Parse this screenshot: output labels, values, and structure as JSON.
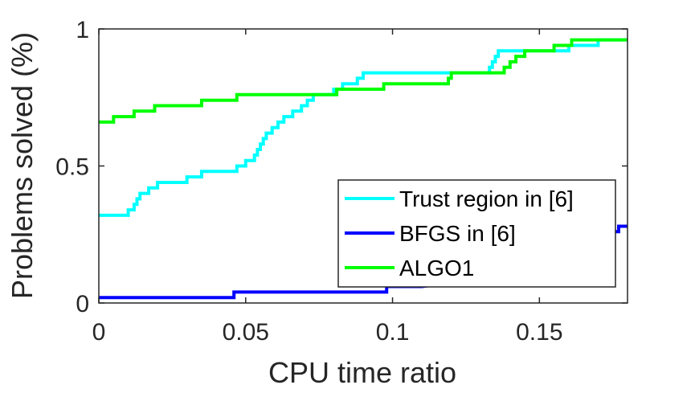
{
  "chart_data": {
    "type": "line",
    "title": "",
    "xlabel": "CPU time ratio",
    "ylabel": "Problems solved (%)",
    "xlim": [
      0,
      0.18
    ],
    "ylim": [
      0,
      1
    ],
    "x_ticks": [
      "0",
      "0.05",
      "0.1",
      "0.15"
    ],
    "x_tick_values": [
      0,
      0.05,
      0.1,
      0.15
    ],
    "y_ticks": [
      "0",
      "0.5",
      "1"
    ],
    "y_tick_values": [
      0,
      0.5,
      1
    ],
    "grid": false,
    "legend_position": "lower-right",
    "series": [
      {
        "name": "Trust region in [6]",
        "color": "#00ffff",
        "step": true,
        "points": [
          [
            0,
            0.32
          ],
          [
            0.01,
            0.32
          ],
          [
            0.01,
            0.34
          ],
          [
            0.012,
            0.34
          ],
          [
            0.012,
            0.36
          ],
          [
            0.013,
            0.36
          ],
          [
            0.013,
            0.38
          ],
          [
            0.014,
            0.38
          ],
          [
            0.014,
            0.4
          ],
          [
            0.017,
            0.4
          ],
          [
            0.017,
            0.42
          ],
          [
            0.02,
            0.42
          ],
          [
            0.02,
            0.44
          ],
          [
            0.03,
            0.44
          ],
          [
            0.03,
            0.46
          ],
          [
            0.035,
            0.46
          ],
          [
            0.035,
            0.48
          ],
          [
            0.047,
            0.48
          ],
          [
            0.047,
            0.5
          ],
          [
            0.05,
            0.5
          ],
          [
            0.05,
            0.52
          ],
          [
            0.053,
            0.52
          ],
          [
            0.053,
            0.54
          ],
          [
            0.054,
            0.54
          ],
          [
            0.054,
            0.56
          ],
          [
            0.055,
            0.56
          ],
          [
            0.055,
            0.58
          ],
          [
            0.056,
            0.58
          ],
          [
            0.056,
            0.6
          ],
          [
            0.057,
            0.6
          ],
          [
            0.057,
            0.62
          ],
          [
            0.059,
            0.62
          ],
          [
            0.059,
            0.64
          ],
          [
            0.061,
            0.64
          ],
          [
            0.061,
            0.66
          ],
          [
            0.063,
            0.66
          ],
          [
            0.063,
            0.68
          ],
          [
            0.066,
            0.68
          ],
          [
            0.066,
            0.7
          ],
          [
            0.069,
            0.7
          ],
          [
            0.069,
            0.72
          ],
          [
            0.071,
            0.72
          ],
          [
            0.071,
            0.74
          ],
          [
            0.073,
            0.74
          ],
          [
            0.073,
            0.76
          ],
          [
            0.08,
            0.76
          ],
          [
            0.08,
            0.78
          ],
          [
            0.083,
            0.78
          ],
          [
            0.083,
            0.8
          ],
          [
            0.088,
            0.8
          ],
          [
            0.088,
            0.82
          ],
          [
            0.09,
            0.82
          ],
          [
            0.09,
            0.84
          ],
          [
            0.133,
            0.84
          ],
          [
            0.133,
            0.86
          ],
          [
            0.134,
            0.86
          ],
          [
            0.134,
            0.88
          ],
          [
            0.135,
            0.88
          ],
          [
            0.135,
            0.9
          ],
          [
            0.136,
            0.9
          ],
          [
            0.136,
            0.92
          ],
          [
            0.16,
            0.92
          ],
          [
            0.16,
            0.94
          ],
          [
            0.17,
            0.94
          ],
          [
            0.17,
            0.96
          ],
          [
            0.18,
            0.96
          ]
        ]
      },
      {
        "name": "BFGS in [6]",
        "color": "#0000ff",
        "step": true,
        "points": [
          [
            0,
            0.02
          ],
          [
            0.046,
            0.02
          ],
          [
            0.046,
            0.04
          ],
          [
            0.098,
            0.04
          ],
          [
            0.098,
            0.06
          ],
          [
            0.11,
            0.06
          ],
          [
            0.125,
            0.08
          ],
          [
            0.14,
            0.12
          ],
          [
            0.155,
            0.16
          ],
          [
            0.165,
            0.24
          ],
          [
            0.168,
            0.24
          ],
          [
            0.168,
            0.26
          ],
          [
            0.177,
            0.26
          ],
          [
            0.177,
            0.28
          ],
          [
            0.18,
            0.28
          ]
        ]
      },
      {
        "name": "ALGO1",
        "color": "#00ff00",
        "step": true,
        "points": [
          [
            0,
            0.66
          ],
          [
            0.005,
            0.66
          ],
          [
            0.005,
            0.68
          ],
          [
            0.012,
            0.68
          ],
          [
            0.012,
            0.7
          ],
          [
            0.019,
            0.7
          ],
          [
            0.019,
            0.72
          ],
          [
            0.035,
            0.72
          ],
          [
            0.035,
            0.74
          ],
          [
            0.047,
            0.74
          ],
          [
            0.047,
            0.76
          ],
          [
            0.081,
            0.76
          ],
          [
            0.081,
            0.78
          ],
          [
            0.097,
            0.78
          ],
          [
            0.097,
            0.8
          ],
          [
            0.119,
            0.8
          ],
          [
            0.119,
            0.82
          ],
          [
            0.12,
            0.82
          ],
          [
            0.12,
            0.84
          ],
          [
            0.138,
            0.84
          ],
          [
            0.138,
            0.86
          ],
          [
            0.14,
            0.86
          ],
          [
            0.14,
            0.88
          ],
          [
            0.142,
            0.88
          ],
          [
            0.142,
            0.9
          ],
          [
            0.145,
            0.9
          ],
          [
            0.145,
            0.92
          ],
          [
            0.155,
            0.92
          ],
          [
            0.155,
            0.94
          ],
          [
            0.161,
            0.94
          ],
          [
            0.161,
            0.96
          ],
          [
            0.18,
            0.96
          ]
        ]
      }
    ]
  }
}
